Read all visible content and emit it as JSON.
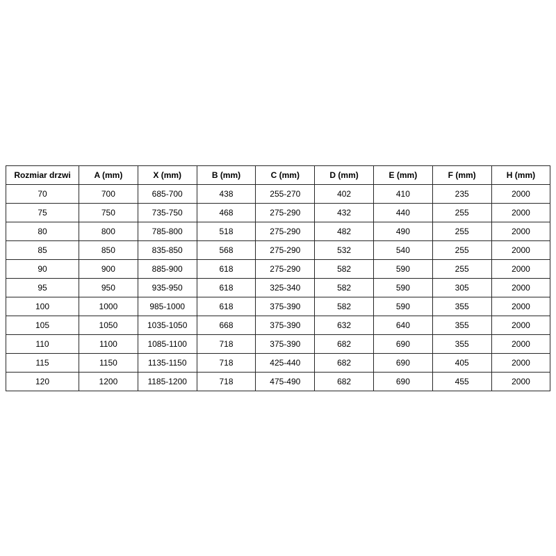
{
  "page": {
    "background": "#ffffff"
  },
  "table": {
    "border_color": "#262626",
    "text_color": "#000000",
    "header_bold": true,
    "columns": [
      "Rozmiar drzwi",
      "A (mm)",
      "X (mm)",
      "B (mm)",
      "C (mm)",
      "D (mm)",
      "E (mm)",
      "F (mm)",
      "H (mm)"
    ],
    "rows": [
      [
        "70",
        "700",
        "685-700",
        "438",
        "255-270",
        "402",
        "410",
        "235",
        "2000"
      ],
      [
        "75",
        "750",
        "735-750",
        "468",
        "275-290",
        "432",
        "440",
        "255",
        "2000"
      ],
      [
        "80",
        "800",
        "785-800",
        "518",
        "275-290",
        "482",
        "490",
        "255",
        "2000"
      ],
      [
        "85",
        "850",
        "835-850",
        "568",
        "275-290",
        "532",
        "540",
        "255",
        "2000"
      ],
      [
        "90",
        "900",
        "885-900",
        "618",
        "275-290",
        "582",
        "590",
        "255",
        "2000"
      ],
      [
        "95",
        "950",
        "935-950",
        "618",
        "325-340",
        "582",
        "590",
        "305",
        "2000"
      ],
      [
        "100",
        "1000",
        "985-1000",
        "618",
        "375-390",
        "582",
        "590",
        "355",
        "2000"
      ],
      [
        "105",
        "1050",
        "1035-1050",
        "668",
        "375-390",
        "632",
        "640",
        "355",
        "2000"
      ],
      [
        "110",
        "1100",
        "1085-1100",
        "718",
        "375-390",
        "682",
        "690",
        "355",
        "2000"
      ],
      [
        "115",
        "1150",
        "1135-1150",
        "718",
        "425-440",
        "682",
        "690",
        "405",
        "2000"
      ],
      [
        "120",
        "1200",
        "1185-1200",
        "718",
        "475-490",
        "682",
        "690",
        "455",
        "2000"
      ]
    ]
  }
}
